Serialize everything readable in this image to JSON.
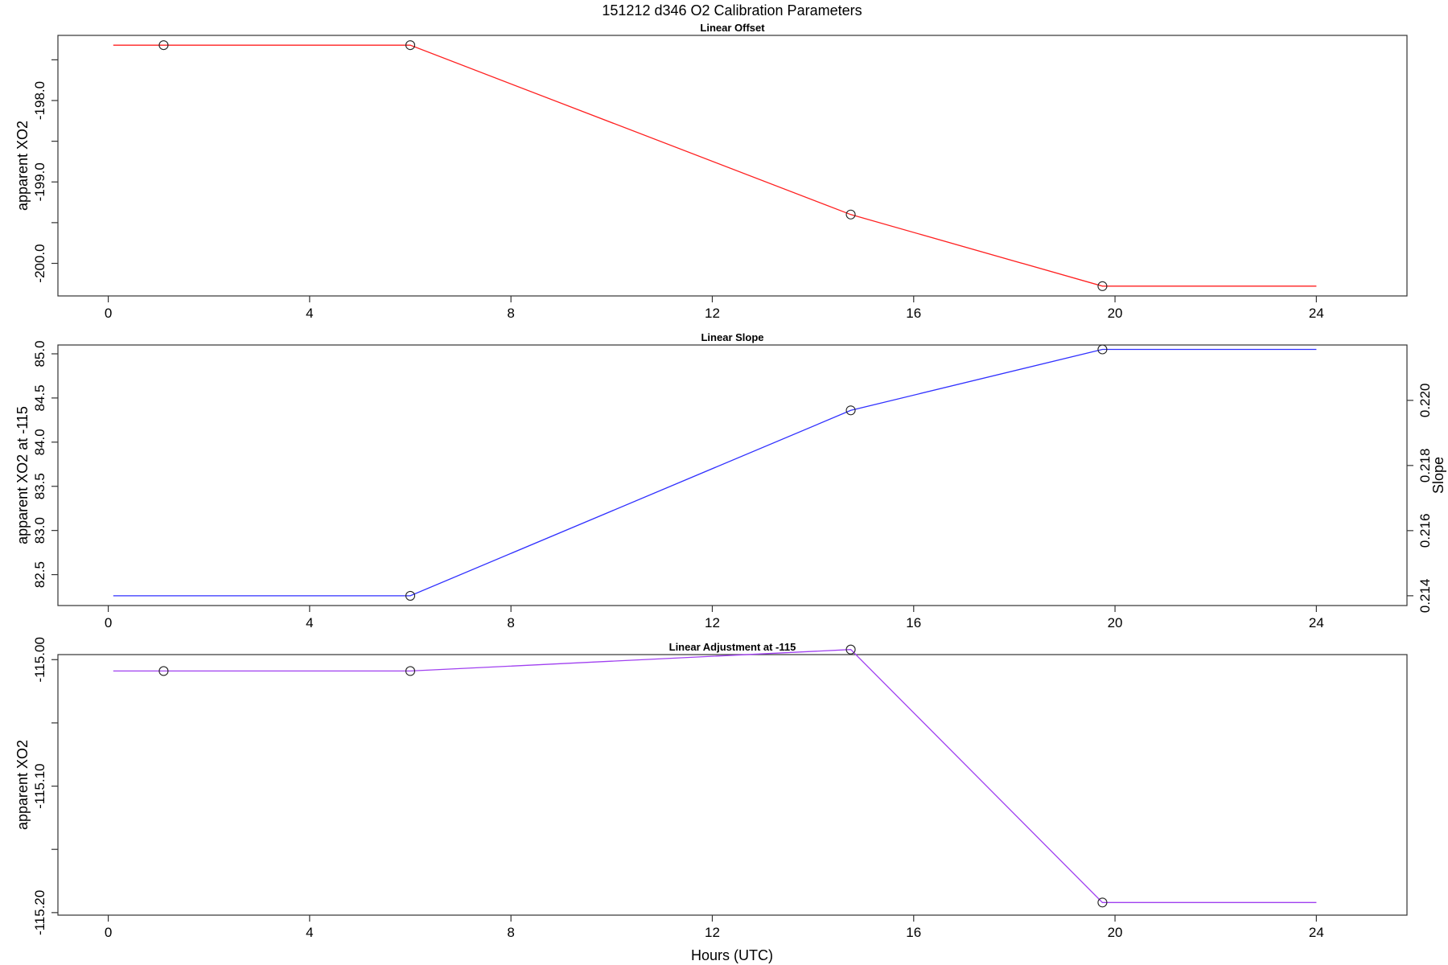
{
  "title": "151212   d346   O2 Calibration Parameters",
  "xlabel": "Hours (UTC)",
  "chart_data": [
    {
      "type": "line",
      "title": "Linear Offset",
      "ylabel": "apparent XO2",
      "xlim": [
        -1.0,
        25.8
      ],
      "ylim": [
        -200.4,
        -197.2
      ],
      "xticks": [
        0,
        4,
        8,
        12,
        16,
        20,
        24
      ],
      "yticks": [
        -200.5,
        -200.0,
        -199.5,
        -199.0,
        -198.5,
        -198.0,
        -197.5
      ],
      "ytick_labels": [
        "",
        "-200.0",
        "",
        "-199.0",
        "",
        "-198.0",
        ""
      ],
      "line_color": "#ff2020",
      "series": [
        {
          "x": [
            0.1,
            6.0,
            14.75,
            19.75,
            24.0
          ],
          "y": [
            -197.32,
            -197.32,
            -199.4,
            -200.28,
            -200.28
          ]
        }
      ],
      "markers": {
        "x": [
          1.1,
          6.0,
          14.75,
          19.75
        ],
        "y": [
          -197.32,
          -197.32,
          -199.4,
          -200.28
        ]
      }
    },
    {
      "type": "line",
      "title": "Linear Slope",
      "ylabel": "apparent XO2 at -115",
      "ylabel_right": "Slope",
      "xlim": [
        -1.0,
        25.8
      ],
      "ylim": [
        82.15,
        85.1
      ],
      "yticks": [
        82.5,
        83.0,
        83.5,
        84.0,
        84.5,
        85.0
      ],
      "ytick_labels": [
        "82.5",
        "83.0",
        "83.5",
        "84.0",
        "84.5",
        "85.0"
      ],
      "y2lim": [
        0.2137,
        0.2217
      ],
      "y2ticks": [
        0.214,
        0.216,
        0.218,
        0.22
      ],
      "y2tick_labels": [
        "0.214",
        "0.216",
        "0.218",
        "0.220"
      ],
      "xticks": [
        0,
        4,
        8,
        12,
        16,
        20,
        24
      ],
      "line_color": "#3030ff",
      "series": [
        {
          "x": [
            0.1,
            6.0,
            14.75,
            19.75,
            24.0
          ],
          "y": [
            82.26,
            82.26,
            84.36,
            85.05,
            85.05
          ]
        }
      ],
      "markers": {
        "x": [
          6.0,
          14.75,
          19.75
        ],
        "y": [
          82.26,
          84.36,
          85.05
        ]
      }
    },
    {
      "type": "line",
      "title": "Linear Adjustment at -115",
      "ylabel": "apparent XO2",
      "xlim": [
        -1.0,
        25.8
      ],
      "ylim": [
        -115.202,
        -114.996
      ],
      "yticks": [
        -115.2,
        -115.15,
        -115.1,
        -115.05,
        -115.0
      ],
      "ytick_labels": [
        "-115.20",
        "",
        "-115.10",
        "",
        "-115.00"
      ],
      "xticks": [
        0,
        4,
        8,
        12,
        16,
        20,
        24
      ],
      "line_color": "#a040f0",
      "series": [
        {
          "x": [
            0.1,
            6.0,
            14.75,
            19.75,
            24.0
          ],
          "y": [
            -115.009,
            -115.009,
            -114.992,
            -115.192,
            -115.192
          ]
        }
      ],
      "markers": {
        "x": [
          1.1,
          6.0,
          14.75,
          19.75
        ],
        "y": [
          -115.009,
          -115.009,
          -114.992,
          -115.192
        ]
      }
    }
  ]
}
